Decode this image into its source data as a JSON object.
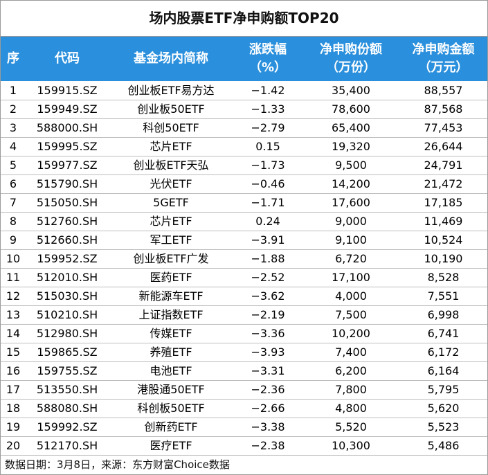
{
  "title": "场内股票ETF净申购额TOP20",
  "headers": {
    "index": "序",
    "code": "代码",
    "name": "基金场内简称",
    "change_line1": "涨跌幅",
    "change_line2": "（%）",
    "shares_line1": "净申购份额",
    "shares_line2": "（万份）",
    "amount_line1": "净申购金额",
    "amount_line2": "（万元）"
  },
  "rows": [
    {
      "idx": "1",
      "code": "159915.SZ",
      "name": "创业板ETF易方达",
      "change": "−1.42",
      "shares": "35,400",
      "amount": "88,557"
    },
    {
      "idx": "2",
      "code": "159949.SZ",
      "name": "创业板50ETF",
      "change": "−1.33",
      "shares": "78,600",
      "amount": "87,568"
    },
    {
      "idx": "3",
      "code": "588000.SH",
      "name": "科创50ETF",
      "change": "−2.79",
      "shares": "65,400",
      "amount": "77,453"
    },
    {
      "idx": "4",
      "code": "159995.SZ",
      "name": "芯片ETF",
      "change": "0.15",
      "shares": "19,320",
      "amount": "26,644"
    },
    {
      "idx": "5",
      "code": "159977.SZ",
      "name": "创业板ETF天弘",
      "change": "−1.73",
      "shares": "9,500",
      "amount": "24,791"
    },
    {
      "idx": "6",
      "code": "515790.SH",
      "name": "光伏ETF",
      "change": "−0.46",
      "shares": "14,200",
      "amount": "21,472"
    },
    {
      "idx": "7",
      "code": "515050.SH",
      "name": "5GETF",
      "change": "−1.71",
      "shares": "17,600",
      "amount": "17,185"
    },
    {
      "idx": "8",
      "code": "512760.SH",
      "name": "芯片ETF",
      "change": "0.24",
      "shares": "9,000",
      "amount": "11,469"
    },
    {
      "idx": "9",
      "code": "512660.SH",
      "name": "军工ETF",
      "change": "−3.91",
      "shares": "9,100",
      "amount": "10,524"
    },
    {
      "idx": "10",
      "code": "159952.SZ",
      "name": "创业板ETF广发",
      "change": "−1.88",
      "shares": "6,720",
      "amount": "10,190"
    },
    {
      "idx": "11",
      "code": "512010.SH",
      "name": "医药ETF",
      "change": "−2.52",
      "shares": "17,100",
      "amount": "8,528"
    },
    {
      "idx": "12",
      "code": "515030.SH",
      "name": "新能源车ETF",
      "change": "−3.62",
      "shares": "4,000",
      "amount": "7,551"
    },
    {
      "idx": "13",
      "code": "510210.SH",
      "name": "上证指数ETF",
      "change": "−2.19",
      "shares": "7,500",
      "amount": "6,998"
    },
    {
      "idx": "14",
      "code": "512980.SH",
      "name": "传媒ETF",
      "change": "−3.36",
      "shares": "10,200",
      "amount": "6,741"
    },
    {
      "idx": "15",
      "code": "159865.SZ",
      "name": "养殖ETF",
      "change": "−3.93",
      "shares": "7,400",
      "amount": "6,172"
    },
    {
      "idx": "16",
      "code": "159755.SZ",
      "name": "电池ETF",
      "change": "−3.31",
      "shares": "6,200",
      "amount": "6,164"
    },
    {
      "idx": "17",
      "code": "513550.SH",
      "name": "港股通50ETF",
      "change": "−2.36",
      "shares": "7,800",
      "amount": "5,795"
    },
    {
      "idx": "18",
      "code": "588080.SH",
      "name": "科创板50ETF",
      "change": "−2.66",
      "shares": "4,800",
      "amount": "5,620"
    },
    {
      "idx": "19",
      "code": "159992.SZ",
      "name": "创新药ETF",
      "change": "−3.38",
      "shares": "5,520",
      "amount": "5,523"
    },
    {
      "idx": "20",
      "code": "512170.SH",
      "name": "医疗ETF",
      "change": "−2.38",
      "shares": "10,300",
      "amount": "5,486"
    }
  ],
  "footer": "数据日期：3月8日，来源：东方财富Choice数据",
  "colors": {
    "header_bg": "#2a8fdc",
    "header_text": "#ffffff",
    "grid_line": "#bdbdbd"
  }
}
